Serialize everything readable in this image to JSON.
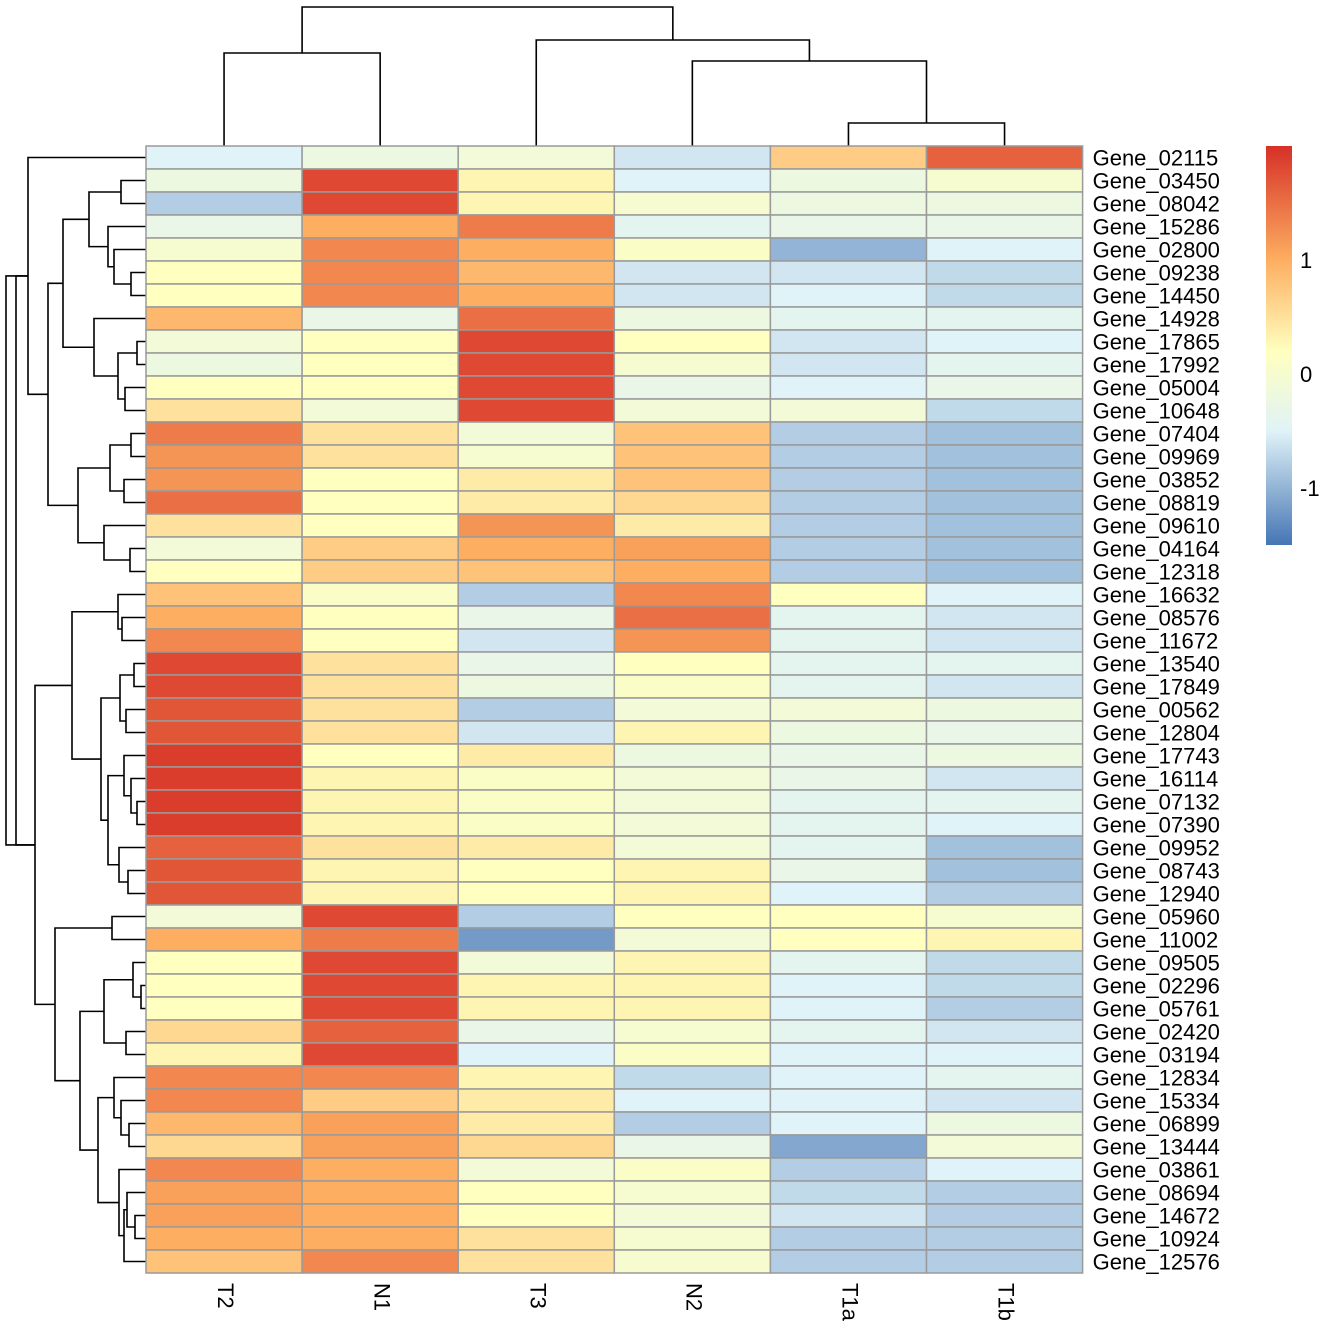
{
  "chart_data": {
    "type": "heatmap",
    "title": "",
    "xlabel": "",
    "ylabel": "",
    "columns": [
      "T2",
      "N1",
      "T3",
      "N2",
      "T1a",
      "T1b"
    ],
    "rows": [
      "Gene_02115",
      "Gene_03450",
      "Gene_08042",
      "Gene_15286",
      "Gene_02800",
      "Gene_09238",
      "Gene_14450",
      "Gene_14928",
      "Gene_17865",
      "Gene_17992",
      "Gene_05004",
      "Gene_10648",
      "Gene_07404",
      "Gene_09969",
      "Gene_03852",
      "Gene_08819",
      "Gene_09610",
      "Gene_04164",
      "Gene_12318",
      "Gene_16632",
      "Gene_08576",
      "Gene_11672",
      "Gene_13540",
      "Gene_17849",
      "Gene_00562",
      "Gene_12804",
      "Gene_17743",
      "Gene_16114",
      "Gene_07132",
      "Gene_07390",
      "Gene_09952",
      "Gene_08743",
      "Gene_12940",
      "Gene_05960",
      "Gene_11002",
      "Gene_09505",
      "Gene_02296",
      "Gene_05761",
      "Gene_02420",
      "Gene_03194",
      "Gene_12834",
      "Gene_15334",
      "Gene_06899",
      "Gene_13444",
      "Gene_03861",
      "Gene_08694",
      "Gene_14672",
      "Gene_10924",
      "Gene_12576"
    ],
    "values": [
      [
        -0.5,
        -0.2,
        -0.1,
        -0.6,
        0.7,
        1.6
      ],
      [
        -0.2,
        1.8,
        0.3,
        -0.5,
        -0.2,
        0.0
      ],
      [
        -0.8,
        1.8,
        0.3,
        0.0,
        -0.2,
        -0.2
      ],
      [
        -0.3,
        1.0,
        1.4,
        -0.4,
        -0.3,
        -0.3
      ],
      [
        0.0,
        1.3,
        1.0,
        0.1,
        -1.0,
        -0.5
      ],
      [
        0.2,
        1.3,
        0.9,
        -0.6,
        -0.6,
        -0.7
      ],
      [
        0.2,
        1.3,
        1.0,
        -0.6,
        -0.5,
        -0.7
      ],
      [
        0.9,
        -0.3,
        1.5,
        -0.2,
        -0.4,
        -0.4
      ],
      [
        -0.1,
        0.2,
        1.8,
        0.2,
        -0.6,
        -0.5
      ],
      [
        -0.2,
        0.2,
        1.8,
        0.0,
        -0.6,
        -0.4
      ],
      [
        0.2,
        0.2,
        1.8,
        -0.3,
        -0.5,
        -0.3
      ],
      [
        0.5,
        -0.1,
        1.8,
        -0.1,
        -0.1,
        -0.7
      ],
      [
        1.4,
        0.5,
        -0.1,
        0.8,
        -0.8,
        -0.9
      ],
      [
        1.2,
        0.5,
        0.0,
        0.8,
        -0.8,
        -0.9
      ],
      [
        1.2,
        0.2,
        0.4,
        0.8,
        -0.8,
        -0.9
      ],
      [
        1.5,
        0.2,
        0.4,
        0.6,
        -0.8,
        -0.9
      ],
      [
        0.5,
        0.2,
        1.2,
        0.4,
        -0.8,
        -0.9
      ],
      [
        -0.1,
        0.7,
        1.0,
        1.1,
        -0.8,
        -0.9
      ],
      [
        0.2,
        0.7,
        0.8,
        1.0,
        -0.8,
        -0.9
      ],
      [
        0.8,
        0.1,
        -0.8,
        1.3,
        0.2,
        -0.5
      ],
      [
        1.0,
        0.2,
        -0.3,
        1.5,
        -0.4,
        -0.6
      ],
      [
        1.3,
        0.2,
        -0.6,
        1.2,
        -0.4,
        -0.6
      ],
      [
        1.8,
        0.5,
        -0.3,
        0.2,
        -0.4,
        -0.4
      ],
      [
        1.8,
        0.5,
        -0.2,
        0.1,
        -0.4,
        -0.6
      ],
      [
        1.7,
        0.5,
        -0.8,
        -0.1,
        -0.1,
        -0.2
      ],
      [
        1.7,
        0.5,
        -0.6,
        0.3,
        -0.2,
        -0.3
      ],
      [
        1.9,
        0.2,
        0.4,
        -0.2,
        -0.3,
        -0.2
      ],
      [
        1.9,
        0.3,
        0.1,
        -0.1,
        -0.3,
        -0.6
      ],
      [
        1.9,
        0.3,
        0.1,
        -0.1,
        -0.4,
        -0.4
      ],
      [
        1.9,
        0.3,
        0.1,
        -0.1,
        -0.4,
        -0.5
      ],
      [
        1.6,
        0.5,
        0.4,
        -0.1,
        -0.4,
        -0.9
      ],
      [
        1.7,
        0.3,
        0.2,
        0.3,
        -0.3,
        -0.9
      ],
      [
        1.7,
        0.3,
        0.2,
        0.3,
        -0.5,
        -0.8
      ],
      [
        -0.1,
        1.8,
        -0.8,
        0.2,
        0.2,
        0.0
      ],
      [
        1.0,
        1.4,
        -1.2,
        -0.1,
        0.2,
        0.3
      ],
      [
        0.2,
        1.8,
        -0.1,
        0.3,
        -0.4,
        -0.7
      ],
      [
        0.2,
        1.8,
        0.3,
        0.3,
        -0.5,
        -0.7
      ],
      [
        0.2,
        1.8,
        0.3,
        0.3,
        -0.5,
        -0.8
      ],
      [
        0.6,
        1.6,
        -0.3,
        0.0,
        -0.4,
        -0.6
      ],
      [
        0.3,
        1.8,
        -0.5,
        0.1,
        -0.5,
        -0.5
      ],
      [
        1.3,
        1.3,
        0.3,
        -0.7,
        -0.5,
        -0.4
      ],
      [
        1.3,
        0.7,
        0.4,
        -0.5,
        -0.5,
        -0.6
      ],
      [
        0.9,
        1.1,
        0.4,
        -0.8,
        -0.5,
        -0.2
      ],
      [
        0.6,
        1.1,
        0.6,
        -0.3,
        -1.1,
        -0.1
      ],
      [
        1.3,
        1.0,
        -0.1,
        0.1,
        -0.8,
        -0.5
      ],
      [
        1.1,
        1.0,
        0.2,
        0.0,
        -0.7,
        -0.8
      ],
      [
        1.1,
        1.0,
        0.2,
        -0.1,
        -0.6,
        -0.8
      ],
      [
        1.0,
        1.0,
        0.5,
        0.0,
        -0.8,
        -0.8
      ],
      [
        0.8,
        1.3,
        0.5,
        0.0,
        -0.8,
        -0.8
      ]
    ],
    "color_range": [
      -1.5,
      2.0
    ],
    "colors": {
      "low": "#4575b4",
      "mid_low": "#e0f3f8",
      "mid": "#ffffbf",
      "mid_high": "#fdae61",
      "high": "#d73027"
    },
    "legend": {
      "position": "right",
      "ticks": [
        {
          "value": 1,
          "label": "1"
        },
        {
          "value": 0,
          "label": "0"
        },
        {
          "value": -1,
          "label": "-1"
        }
      ]
    }
  }
}
